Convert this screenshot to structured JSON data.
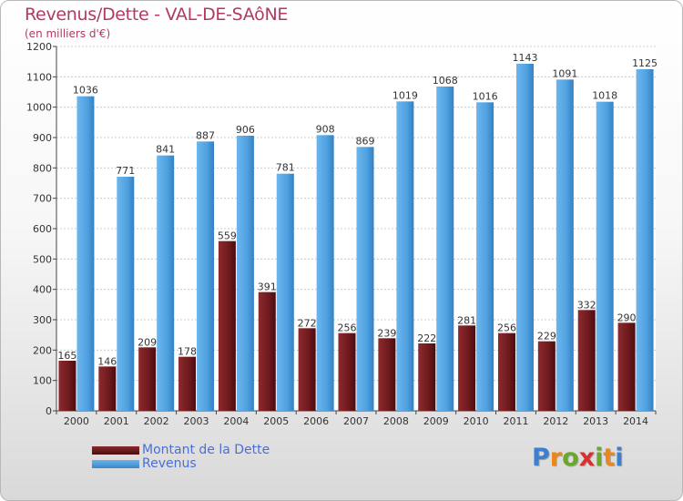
{
  "header": {
    "title": "Revenus/Dette - VAL-DE-SAôNE",
    "subtitle": "(en milliers d'€)"
  },
  "logo": {
    "letters": [
      {
        "char": "P",
        "color": "#3a7fd0"
      },
      {
        "char": "r",
        "color": "#e8881e"
      },
      {
        "char": "o",
        "color": "#6aa82c"
      },
      {
        "char": "x",
        "color": "#d92f2f"
      },
      {
        "char": "i",
        "color": "#6aa82c"
      },
      {
        "char": "t",
        "color": "#e8881e"
      },
      {
        "char": "i",
        "color": "#3a7fd0"
      }
    ]
  },
  "colors": {
    "dette": "#6e1a1d",
    "revenus": "#4fa1e0",
    "axis_text": "#333333",
    "grid": "#cccccc"
  },
  "chart_data": {
    "type": "bar",
    "title": "Revenus/Dette - VAL-DE-SAôNE",
    "subtitle": "(en milliers d'€)",
    "xlabel": "",
    "ylabel": "",
    "ylim": [
      0,
      1200
    ],
    "yticks": [
      0,
      100,
      200,
      300,
      400,
      500,
      600,
      700,
      800,
      900,
      1000,
      1100,
      1200
    ],
    "grid": true,
    "legend_position": "bottom-left",
    "categories": [
      "2000",
      "2001",
      "2002",
      "2003",
      "2004",
      "2005",
      "2006",
      "2007",
      "2008",
      "2009",
      "2010",
      "2011",
      "2012",
      "2013",
      "2014"
    ],
    "series": [
      {
        "name": "Montant de la Dette",
        "color": "#6e1a1d",
        "values": [
          165,
          146,
          209,
          178,
          559,
          391,
          272,
          256,
          239,
          222,
          281,
          256,
          229,
          332,
          290
        ]
      },
      {
        "name": "Revenus",
        "color": "#4fa1e0",
        "values": [
          1036,
          771,
          841,
          887,
          906,
          781,
          908,
          869,
          1019,
          1068,
          1016,
          1143,
          1091,
          1018,
          1125
        ]
      }
    ]
  }
}
